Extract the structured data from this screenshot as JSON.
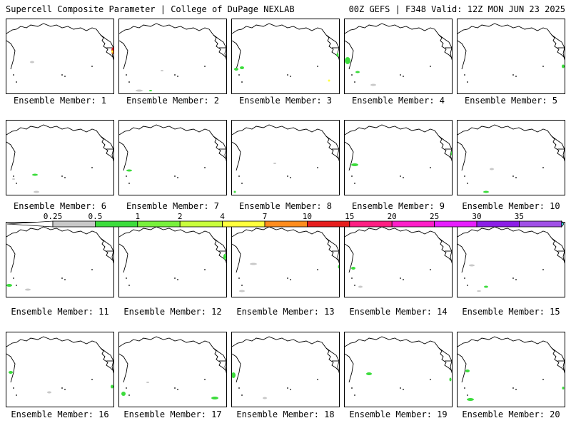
{
  "header": {
    "left": "Supercell Composite Parameter | College of DuPage NEXLAB",
    "right": "00Z GEFS | F348 Valid: 12Z MON JUN 23 2025"
  },
  "panels": [
    {
      "label": "Ensemble Member: 1"
    },
    {
      "label": "Ensemble Member: 2"
    },
    {
      "label": "Ensemble Member: 3"
    },
    {
      "label": "Ensemble Member: 4"
    },
    {
      "label": "Ensemble Member: 5"
    },
    {
      "label": "Ensemble Member: 6"
    },
    {
      "label": "Ensemble Member: 7"
    },
    {
      "label": "Ensemble Member: 8"
    },
    {
      "label": "Ensemble Member: 9"
    },
    {
      "label": "Ensemble Member: 10"
    },
    {
      "label": "Ensemble Member: 11"
    },
    {
      "label": "Ensemble Member: 12"
    },
    {
      "label": "Ensemble Member: 13"
    },
    {
      "label": "Ensemble Member: 14"
    },
    {
      "label": "Ensemble Member: 15"
    },
    {
      "label": "Ensemble Member: 16"
    },
    {
      "label": "Ensemble Member: 17"
    },
    {
      "label": "Ensemble Member: 18"
    },
    {
      "label": "Ensemble Member: 19"
    },
    {
      "label": "Ensemble Member: 20"
    }
  ],
  "colorbar": {
    "labels": [
      "0.25",
      "0.5",
      "1",
      "2",
      "4",
      "7",
      "10",
      "15",
      "20",
      "25",
      "30",
      "35"
    ],
    "colors": [
      "#c8c8c8",
      "#3cdc3c",
      "#78f03c",
      "#c8ff3c",
      "#ffff3c",
      "#ff8c1e",
      "#e61e1e",
      "#ff1e82",
      "#ff1ec8",
      "#e61eff",
      "#8c1ee6",
      "#a050e6",
      "#3cf0f0"
    ]
  },
  "colors": {
    "gray": "#c8c8c8",
    "green": "#3cdc3c",
    "lime": "#78f03c",
    "yellow": "#ffff3c",
    "orange": "#ff8c1e",
    "red": "#e61e1e"
  }
}
